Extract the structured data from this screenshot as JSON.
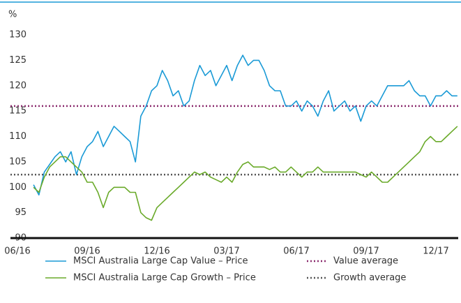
{
  "chart_data": {
    "type": "line",
    "y_unit": "%",
    "categories": [
      "06/16",
      null,
      null,
      null,
      null,
      null,
      null,
      null,
      null,
      null,
      null,
      null,
      null,
      "09/16",
      null,
      null,
      null,
      null,
      null,
      null,
      null,
      null,
      null,
      null,
      null,
      null,
      "12/16",
      null,
      null,
      null,
      null,
      null,
      null,
      null,
      null,
      null,
      null,
      null,
      null,
      "03/17",
      null,
      null,
      null,
      null,
      null,
      null,
      null,
      null,
      null,
      null,
      null,
      null,
      "06/17",
      null,
      null,
      null,
      null,
      null,
      null,
      null,
      null,
      null,
      null,
      null,
      null,
      "09/17",
      null,
      null,
      null,
      null,
      null,
      null,
      null,
      null,
      null,
      null,
      null,
      null,
      "12/17",
      null,
      null,
      null,
      null
    ],
    "series": [
      {
        "name": "MSCI Australia Large Cap Value – Price",
        "color": "#1a9ad6",
        "values": [
          null,
          null,
          null,
          100.5,
          98.5,
          103,
          104.5,
          106,
          107,
          105,
          107,
          102.5,
          106,
          108,
          109,
          111,
          108,
          110,
          112,
          111,
          110,
          109,
          105,
          114,
          116,
          119,
          120,
          123,
          121,
          118,
          119,
          116,
          117,
          121,
          124,
          122,
          123,
          120,
          122,
          124,
          121,
          124,
          126,
          124,
          125,
          125,
          123,
          120,
          119,
          119,
          116,
          116,
          117,
          115,
          117,
          116,
          114,
          117,
          119,
          115,
          116,
          117,
          115,
          116,
          113,
          116,
          117,
          116,
          118,
          120,
          120,
          120,
          120,
          121,
          119,
          118,
          118,
          116,
          118,
          118,
          119,
          118,
          118
        ]
      },
      {
        "name": "MSCI Australia Large Cap Growth – Price",
        "color": "#6aaa2a",
        "values": [
          null,
          null,
          null,
          100,
          99,
          102,
          104,
          105,
          106,
          106,
          105,
          104,
          103,
          101,
          101,
          99,
          96,
          99,
          100,
          100,
          100,
          99,
          99,
          95,
          94,
          93.5,
          96,
          97,
          98,
          99,
          100,
          101,
          102,
          103,
          102.5,
          103,
          102,
          101.5,
          101,
          102,
          101,
          103,
          104.5,
          105,
          104,
          104,
          104,
          103.5,
          104,
          103,
          103,
          104,
          103,
          102,
          103,
          103,
          104,
          103,
          103,
          103,
          103,
          103,
          103,
          103,
          102.5,
          102,
          103,
          102,
          101,
          101,
          102,
          103,
          104,
          105,
          106,
          107,
          109,
          110,
          109,
          109,
          110,
          111,
          112
        ]
      }
    ],
    "reference_lines": [
      {
        "name": "Value average",
        "value": 116,
        "color": "#8b2b6e"
      },
      {
        "name": "Growth average",
        "value": 102.5,
        "color": "#555555"
      }
    ],
    "ylim": [
      90,
      130
    ],
    "yticks": [
      90,
      95,
      100,
      105,
      110,
      115,
      120,
      125,
      130
    ],
    "grid": false
  }
}
